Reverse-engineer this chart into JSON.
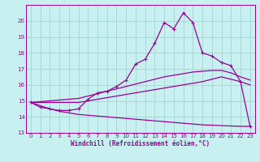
{
  "xlabel": "Windchill (Refroidissement éolien,°C)",
  "bg_color": "#c8f0f0",
  "grid_color": "#a8d8d8",
  "line_color": "#990099",
  "xlim": [
    -0.5,
    23.5
  ],
  "ylim": [
    13,
    21
  ],
  "yticks": [
    13,
    14,
    15,
    16,
    17,
    18,
    19,
    20
  ],
  "xticks": [
    0,
    1,
    2,
    3,
    4,
    5,
    6,
    7,
    8,
    9,
    10,
    11,
    12,
    13,
    14,
    15,
    16,
    17,
    18,
    19,
    20,
    21,
    22,
    23
  ],
  "line1_x": [
    0,
    1,
    2,
    3,
    4,
    5,
    6,
    7,
    8,
    9,
    10,
    11,
    12,
    13,
    14,
    15,
    16,
    17,
    18,
    19,
    20,
    21,
    22,
    23
  ],
  "line1_y": [
    14.9,
    14.6,
    14.5,
    14.4,
    14.4,
    14.5,
    15.1,
    15.5,
    15.6,
    15.9,
    16.3,
    17.3,
    17.6,
    18.6,
    19.9,
    19.5,
    20.5,
    19.9,
    18.0,
    17.8,
    17.4,
    17.2,
    16.2,
    13.4
  ],
  "line2_x": [
    0,
    1,
    2,
    3,
    4,
    5,
    6,
    7,
    8,
    9,
    10,
    11,
    12,
    13,
    14,
    15,
    16,
    17,
    18,
    19,
    20,
    21,
    22,
    23
  ],
  "line2_y": [
    14.9,
    14.95,
    15.0,
    15.05,
    15.1,
    15.15,
    15.3,
    15.45,
    15.6,
    15.75,
    15.9,
    16.05,
    16.2,
    16.35,
    16.5,
    16.6,
    16.7,
    16.8,
    16.85,
    16.9,
    16.9,
    16.75,
    16.5,
    16.3
  ],
  "line3_x": [
    0,
    1,
    2,
    3,
    4,
    5,
    6,
    7,
    8,
    9,
    10,
    11,
    12,
    13,
    14,
    15,
    16,
    17,
    18,
    19,
    20,
    21,
    22,
    23
  ],
  "line3_y": [
    14.9,
    14.9,
    14.9,
    14.9,
    14.9,
    14.9,
    15.0,
    15.1,
    15.2,
    15.3,
    15.4,
    15.5,
    15.6,
    15.7,
    15.8,
    15.9,
    16.0,
    16.1,
    16.2,
    16.35,
    16.5,
    16.35,
    16.2,
    16.0
  ],
  "line4_x": [
    0,
    1,
    2,
    3,
    4,
    5,
    6,
    7,
    8,
    9,
    10,
    11,
    12,
    13,
    14,
    15,
    16,
    17,
    18,
    19,
    20,
    21,
    22,
    23
  ],
  "line4_y": [
    14.9,
    14.7,
    14.5,
    14.35,
    14.25,
    14.15,
    14.1,
    14.05,
    14.0,
    13.95,
    13.9,
    13.85,
    13.8,
    13.75,
    13.7,
    13.65,
    13.6,
    13.55,
    13.5,
    13.48,
    13.45,
    13.43,
    13.41,
    13.4
  ]
}
